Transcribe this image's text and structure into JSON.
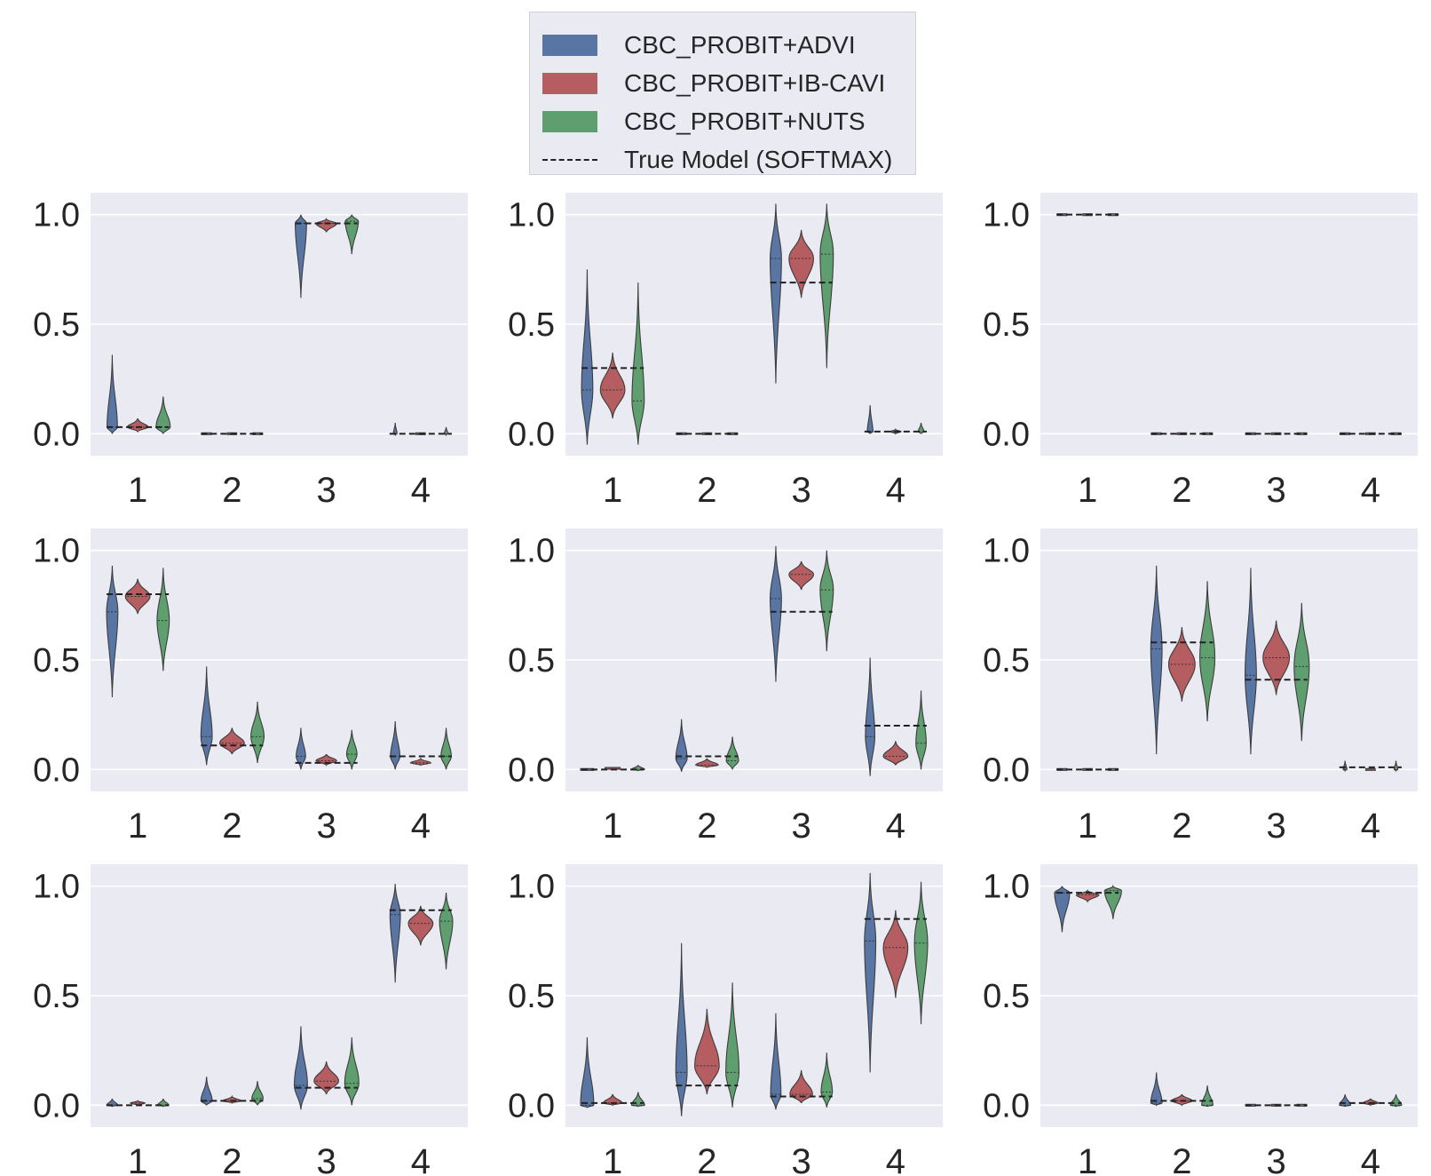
{
  "legend": {
    "entries": [
      {
        "label": "CBC_PROBIT+ADVI",
        "color": "#5975a4"
      },
      {
        "label": "CBC_PROBIT+IB-CAVI",
        "color": "#b55d60"
      },
      {
        "label": "CBC_PROBIT+NUTS",
        "color": "#5f9e6e"
      },
      {
        "label": "True Model (SOFTMAX)",
        "color": "#222222"
      }
    ]
  },
  "chart_data": {
    "type": "violin",
    "layout": "3x3 grid",
    "categories": [
      "1",
      "2",
      "3",
      "4"
    ],
    "ylim": [
      -0.1,
      1.1
    ],
    "yticks": [
      "0.0",
      "0.5",
      "1.0"
    ],
    "grid": true,
    "series_order": [
      "ADVI",
      "IB-CAVI",
      "NUTS"
    ],
    "panels": [
      {
        "truth": [
          0.03,
          0.0,
          0.96,
          0.0
        ],
        "violins": [
          [
            {
              "lo": 0.0,
              "hi": 0.36,
              "med": 0.03,
              "w": 0.11
            },
            {
              "lo": 0.01,
              "hi": 0.07,
              "med": 0.03,
              "w": 0.22
            },
            {
              "lo": 0.0,
              "hi": 0.17,
              "med": 0.03,
              "w": 0.15
            }
          ],
          [
            {
              "lo": -0.005,
              "hi": 0.005,
              "med": 0.0,
              "w": 0.1
            },
            {
              "lo": -0.005,
              "hi": 0.005,
              "med": 0.0,
              "w": 0.1
            },
            {
              "lo": -0.005,
              "hi": 0.005,
              "med": 0.0,
              "w": 0.1
            }
          ],
          [
            {
              "lo": 0.62,
              "hi": 1.0,
              "med": 0.96,
              "w": 0.12
            },
            {
              "lo": 0.92,
              "hi": 0.98,
              "med": 0.96,
              "w": 0.22
            },
            {
              "lo": 0.82,
              "hi": 1.0,
              "med": 0.97,
              "w": 0.14
            }
          ],
          [
            {
              "lo": -0.005,
              "hi": 0.05,
              "med": 0.0,
              "w": 0.04
            },
            {
              "lo": -0.005,
              "hi": 0.005,
              "med": 0.0,
              "w": 0.1
            },
            {
              "lo": -0.005,
              "hi": 0.03,
              "med": 0.0,
              "w": 0.04
            }
          ]
        ]
      },
      {
        "truth": [
          0.3,
          0.0,
          0.69,
          0.01
        ],
        "violins": [
          [
            {
              "lo": -0.05,
              "hi": 0.75,
              "med": 0.2,
              "w": 0.12
            },
            {
              "lo": 0.07,
              "hi": 0.37,
              "med": 0.2,
              "w": 0.26
            },
            {
              "lo": -0.05,
              "hi": 0.69,
              "med": 0.15,
              "w": 0.13
            }
          ],
          [
            {
              "lo": -0.005,
              "hi": 0.005,
              "med": 0.0,
              "w": 0.1
            },
            {
              "lo": -0.005,
              "hi": 0.005,
              "med": 0.0,
              "w": 0.1
            },
            {
              "lo": -0.005,
              "hi": 0.005,
              "med": 0.0,
              "w": 0.1
            }
          ],
          [
            {
              "lo": 0.23,
              "hi": 1.05,
              "med": 0.8,
              "w": 0.12
            },
            {
              "lo": 0.62,
              "hi": 0.93,
              "med": 0.8,
              "w": 0.26
            },
            {
              "lo": 0.3,
              "hi": 1.05,
              "med": 0.82,
              "w": 0.14
            }
          ],
          [
            {
              "lo": 0.0,
              "hi": 0.13,
              "med": 0.01,
              "w": 0.06
            },
            {
              "lo": 0.0,
              "hi": 0.02,
              "med": 0.01,
              "w": 0.12
            },
            {
              "lo": 0.0,
              "hi": 0.05,
              "med": 0.01,
              "w": 0.06
            }
          ]
        ]
      },
      {
        "truth": [
          1.0,
          0.0,
          0.0,
          0.0
        ],
        "violins": [
          [
            {
              "lo": 0.995,
              "hi": 1.0,
              "med": 1.0,
              "w": 0.1
            },
            {
              "lo": 0.995,
              "hi": 1.0,
              "med": 1.0,
              "w": 0.1
            },
            {
              "lo": 0.995,
              "hi": 1.0,
              "med": 1.0,
              "w": 0.1
            }
          ],
          [
            {
              "lo": -0.005,
              "hi": 0.005,
              "med": 0.0,
              "w": 0.1
            },
            {
              "lo": -0.005,
              "hi": 0.005,
              "med": 0.0,
              "w": 0.1
            },
            {
              "lo": -0.005,
              "hi": 0.005,
              "med": 0.0,
              "w": 0.1
            }
          ],
          [
            {
              "lo": -0.005,
              "hi": 0.005,
              "med": 0.0,
              "w": 0.1
            },
            {
              "lo": -0.005,
              "hi": 0.005,
              "med": 0.0,
              "w": 0.1
            },
            {
              "lo": -0.005,
              "hi": 0.005,
              "med": 0.0,
              "w": 0.1
            }
          ],
          [
            {
              "lo": -0.005,
              "hi": 0.005,
              "med": 0.0,
              "w": 0.1
            },
            {
              "lo": -0.005,
              "hi": 0.005,
              "med": 0.0,
              "w": 0.1
            },
            {
              "lo": -0.005,
              "hi": 0.005,
              "med": 0.0,
              "w": 0.1
            }
          ]
        ]
      },
      {
        "truth": [
          0.8,
          0.11,
          0.03,
          0.06
        ],
        "violins": [
          [
            {
              "lo": 0.33,
              "hi": 0.93,
              "med": 0.72,
              "w": 0.12
            },
            {
              "lo": 0.71,
              "hi": 0.87,
              "med": 0.79,
              "w": 0.26
            },
            {
              "lo": 0.45,
              "hi": 0.92,
              "med": 0.68,
              "w": 0.13
            }
          ],
          [
            {
              "lo": 0.02,
              "hi": 0.47,
              "med": 0.15,
              "w": 0.12
            },
            {
              "lo": 0.07,
              "hi": 0.19,
              "med": 0.12,
              "w": 0.26
            },
            {
              "lo": 0.03,
              "hi": 0.31,
              "med": 0.15,
              "w": 0.14
            }
          ],
          [
            {
              "lo": 0.0,
              "hi": 0.19,
              "med": 0.06,
              "w": 0.1
            },
            {
              "lo": 0.02,
              "hi": 0.07,
              "med": 0.04,
              "w": 0.22
            },
            {
              "lo": 0.0,
              "hi": 0.18,
              "med": 0.07,
              "w": 0.11
            }
          ],
          [
            {
              "lo": 0.0,
              "hi": 0.22,
              "med": 0.06,
              "w": 0.1
            },
            {
              "lo": 0.02,
              "hi": 0.05,
              "med": 0.03,
              "w": 0.22
            },
            {
              "lo": 0.0,
              "hi": 0.19,
              "med": 0.06,
              "w": 0.11
            }
          ]
        ]
      },
      {
        "truth": [
          0.0,
          0.06,
          0.72,
          0.2
        ],
        "violins": [
          [
            {
              "lo": -0.005,
              "hi": 0.01,
              "med": 0.0,
              "w": 0.14
            },
            {
              "lo": 0.0,
              "hi": 0.015,
              "med": 0.005,
              "w": 0.16
            },
            {
              "lo": -0.005,
              "hi": 0.02,
              "med": 0.0,
              "w": 0.14
            }
          ],
          [
            {
              "lo": -0.01,
              "hi": 0.23,
              "med": 0.05,
              "w": 0.12
            },
            {
              "lo": 0.01,
              "hi": 0.05,
              "med": 0.02,
              "w": 0.24
            },
            {
              "lo": 0.0,
              "hi": 0.15,
              "med": 0.04,
              "w": 0.13
            }
          ],
          [
            {
              "lo": 0.4,
              "hi": 1.02,
              "med": 0.78,
              "w": 0.12
            },
            {
              "lo": 0.82,
              "hi": 0.95,
              "med": 0.89,
              "w": 0.26
            },
            {
              "lo": 0.54,
              "hi": 1.0,
              "med": 0.82,
              "w": 0.14
            }
          ],
          [
            {
              "lo": -0.03,
              "hi": 0.51,
              "med": 0.15,
              "w": 0.1
            },
            {
              "lo": 0.02,
              "hi": 0.13,
              "med": 0.06,
              "w": 0.26
            },
            {
              "lo": 0.0,
              "hi": 0.36,
              "med": 0.12,
              "w": 0.11
            }
          ]
        ]
      },
      {
        "truth": [
          0.0,
          0.58,
          0.41,
          0.01
        ],
        "violins": [
          [
            {
              "lo": -0.005,
              "hi": 0.005,
              "med": 0.0,
              "w": 0.1
            },
            {
              "lo": -0.005,
              "hi": 0.005,
              "med": 0.0,
              "w": 0.1
            },
            {
              "lo": -0.005,
              "hi": 0.005,
              "med": 0.0,
              "w": 0.1
            }
          ],
          [
            {
              "lo": 0.07,
              "hi": 0.93,
              "med": 0.55,
              "w": 0.12
            },
            {
              "lo": 0.31,
              "hi": 0.65,
              "med": 0.48,
              "w": 0.28
            },
            {
              "lo": 0.22,
              "hi": 0.86,
              "med": 0.51,
              "w": 0.16
            }
          ],
          [
            {
              "lo": 0.07,
              "hi": 0.92,
              "med": 0.43,
              "w": 0.12
            },
            {
              "lo": 0.34,
              "hi": 0.68,
              "med": 0.51,
              "w": 0.28
            },
            {
              "lo": 0.13,
              "hi": 0.76,
              "med": 0.47,
              "w": 0.16
            }
          ],
          [
            {
              "lo": -0.005,
              "hi": 0.04,
              "med": 0.0,
              "w": 0.04
            },
            {
              "lo": -0.005,
              "hi": 0.01,
              "med": 0.0,
              "w": 0.1
            },
            {
              "lo": -0.005,
              "hi": 0.04,
              "med": 0.0,
              "w": 0.04
            }
          ]
        ]
      },
      {
        "truth": [
          0.0,
          0.02,
          0.08,
          0.89
        ],
        "violins": [
          [
            {
              "lo": -0.005,
              "hi": 0.03,
              "med": 0.0,
              "w": 0.12
            },
            {
              "lo": 0.0,
              "hi": 0.02,
              "med": 0.01,
              "w": 0.16
            },
            {
              "lo": -0.005,
              "hi": 0.03,
              "med": 0.0,
              "w": 0.12
            }
          ],
          [
            {
              "lo": 0.0,
              "hi": 0.13,
              "med": 0.02,
              "w": 0.12
            },
            {
              "lo": 0.01,
              "hi": 0.04,
              "med": 0.02,
              "w": 0.2
            },
            {
              "lo": 0.0,
              "hi": 0.11,
              "med": 0.03,
              "w": 0.12
            }
          ],
          [
            {
              "lo": -0.02,
              "hi": 0.36,
              "med": 0.09,
              "w": 0.14
            },
            {
              "lo": 0.05,
              "hi": 0.2,
              "med": 0.11,
              "w": 0.26
            },
            {
              "lo": 0.0,
              "hi": 0.31,
              "med": 0.1,
              "w": 0.15
            }
          ],
          [
            {
              "lo": 0.56,
              "hi": 1.01,
              "med": 0.87,
              "w": 0.11
            },
            {
              "lo": 0.73,
              "hi": 0.91,
              "med": 0.83,
              "w": 0.26
            },
            {
              "lo": 0.62,
              "hi": 0.97,
              "med": 0.84,
              "w": 0.14
            }
          ]
        ]
      },
      {
        "truth": [
          0.01,
          0.09,
          0.04,
          0.85
        ],
        "violins": [
          [
            {
              "lo": -0.01,
              "hi": 0.31,
              "med": 0.0,
              "w": 0.14
            },
            {
              "lo": 0.0,
              "hi": 0.05,
              "med": 0.01,
              "w": 0.2
            },
            {
              "lo": -0.005,
              "hi": 0.06,
              "med": 0.0,
              "w": 0.14
            }
          ],
          [
            {
              "lo": -0.05,
              "hi": 0.74,
              "med": 0.15,
              "w": 0.12
            },
            {
              "lo": 0.05,
              "hi": 0.44,
              "med": 0.18,
              "w": 0.26
            },
            {
              "lo": -0.01,
              "hi": 0.56,
              "med": 0.15,
              "w": 0.14
            }
          ],
          [
            {
              "lo": -0.02,
              "hi": 0.42,
              "med": 0.05,
              "w": 0.11
            },
            {
              "lo": 0.01,
              "hi": 0.16,
              "med": 0.05,
              "w": 0.24
            },
            {
              "lo": -0.01,
              "hi": 0.24,
              "med": 0.06,
              "w": 0.12
            }
          ],
          [
            {
              "lo": 0.15,
              "hi": 1.06,
              "med": 0.75,
              "w": 0.12
            },
            {
              "lo": 0.49,
              "hi": 0.89,
              "med": 0.72,
              "w": 0.26
            },
            {
              "lo": 0.37,
              "hi": 1.02,
              "med": 0.74,
              "w": 0.14
            }
          ]
        ]
      },
      {
        "truth": [
          0.97,
          0.02,
          0.0,
          0.01
        ],
        "violins": [
          [
            {
              "lo": 0.79,
              "hi": 1.0,
              "med": 0.97,
              "w": 0.16
            },
            {
              "lo": 0.93,
              "hi": 0.98,
              "med": 0.96,
              "w": 0.24
            },
            {
              "lo": 0.85,
              "hi": 1.0,
              "med": 0.98,
              "w": 0.18
            }
          ],
          [
            {
              "lo": 0.0,
              "hi": 0.15,
              "med": 0.01,
              "w": 0.12
            },
            {
              "lo": 0.0,
              "hi": 0.05,
              "med": 0.02,
              "w": 0.22
            },
            {
              "lo": -0.005,
              "hi": 0.09,
              "med": 0.0,
              "w": 0.12
            }
          ],
          [
            {
              "lo": -0.005,
              "hi": 0.005,
              "med": 0.0,
              "w": 0.1
            },
            {
              "lo": -0.005,
              "hi": 0.005,
              "med": 0.0,
              "w": 0.1
            },
            {
              "lo": -0.005,
              "hi": 0.005,
              "med": 0.0,
              "w": 0.1
            }
          ],
          [
            {
              "lo": -0.005,
              "hi": 0.05,
              "med": 0.0,
              "w": 0.12
            },
            {
              "lo": 0.0,
              "hi": 0.03,
              "med": 0.01,
              "w": 0.16
            },
            {
              "lo": -0.005,
              "hi": 0.05,
              "med": 0.0,
              "w": 0.12
            }
          ]
        ]
      }
    ]
  }
}
